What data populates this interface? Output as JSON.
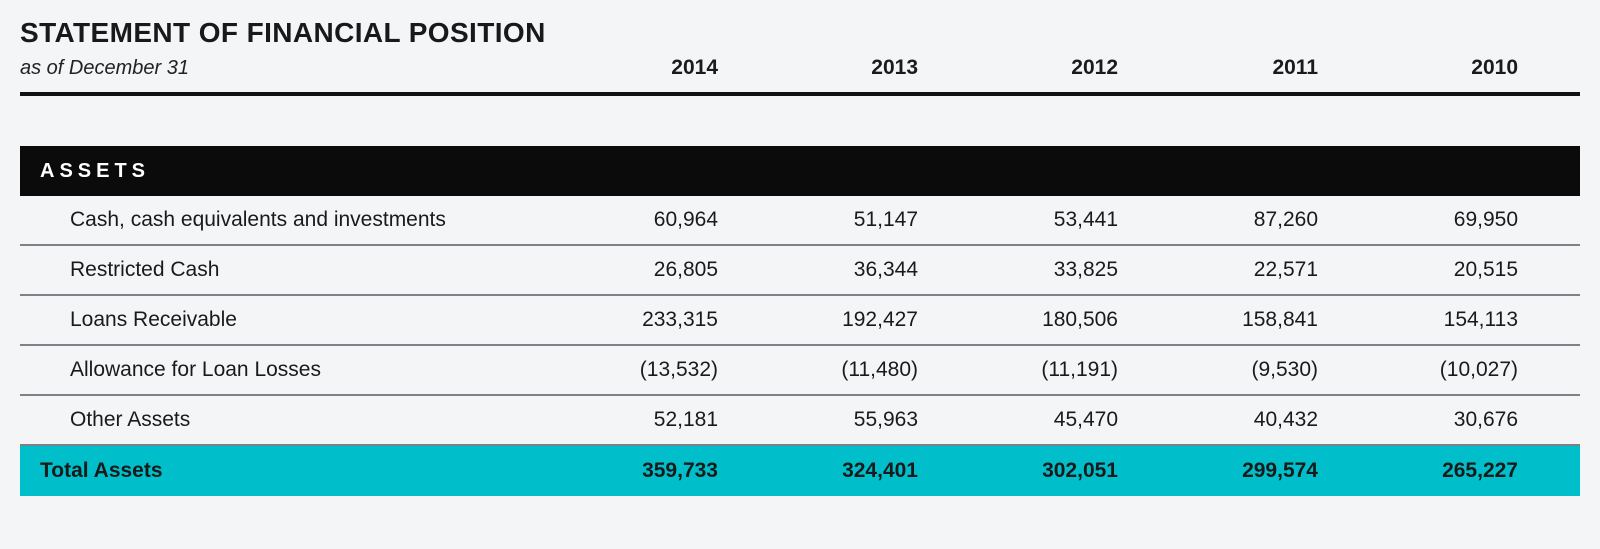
{
  "page": {
    "background_color": "#f4f5f7",
    "accent_color": "#00bfcb",
    "section_bar_color": "#0b0b0b"
  },
  "header": {
    "title": "STATEMENT OF FINANCIAL POSITION",
    "subtitle": "as of December 31",
    "years": [
      "2014",
      "2013",
      "2012",
      "2011",
      "2010"
    ]
  },
  "table": {
    "section_header": "ASSETS",
    "rows": [
      {
        "label": "Cash, cash equivalents and investments",
        "values": [
          "60,964",
          "51,147",
          "53,441",
          "87,260",
          "69,950"
        ]
      },
      {
        "label": "Restricted Cash",
        "values": [
          "26,805",
          "36,344",
          "33,825",
          "22,571",
          "20,515"
        ]
      },
      {
        "label": "Loans Receivable",
        "values": [
          "233,315",
          "192,427",
          "180,506",
          "158,841",
          "154,113"
        ]
      },
      {
        "label": "Allowance for Loan Losses",
        "values": [
          "(13,532)",
          "(11,480)",
          "(11,191)",
          "(9,530)",
          "(10,027)"
        ]
      },
      {
        "label": "Other Assets",
        "values": [
          "52,181",
          "55,963",
          "45,470",
          "40,432",
          "30,676"
        ]
      }
    ],
    "total_row": {
      "label": "Total Assets",
      "values": [
        "359,733",
        "324,401",
        "302,051",
        "299,574",
        "265,227"
      ]
    }
  }
}
